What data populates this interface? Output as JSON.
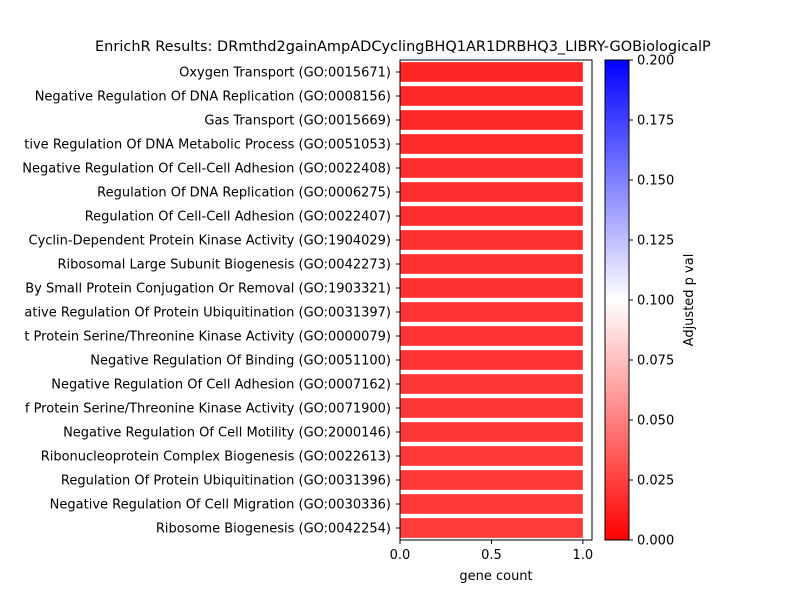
{
  "chart_data": {
    "type": "bar",
    "orientation": "horizontal",
    "title": "EnrichR Results: DRmthd2gainAmpADCyclingBHQ1AR1DRBHQ3_LIBRY-GOBiologicalP",
    "xlabel": "gene count",
    "ylabel": "",
    "xlim": [
      0,
      1.05
    ],
    "xticks": [
      "0.0",
      "0.5",
      "1.0"
    ],
    "categories": [
      "Oxygen Transport (GO:0015671)",
      "Negative Regulation Of DNA Replication (GO:0008156)",
      "Gas Transport (GO:0015669)",
      "tive Regulation Of DNA Metabolic Process (GO:0051053)",
      "Negative Regulation Of Cell-Cell Adhesion (GO:0022408)",
      "Regulation Of DNA Replication (GO:0006275)",
      "Regulation Of Cell-Cell Adhesion (GO:0022407)",
      "Cyclin-Dependent Protein Kinase Activity (GO:1904029)",
      "Ribosomal Large Subunit Biogenesis (GO:0042273)",
      "By Small Protein Conjugation Or Removal (GO:1903321)",
      "ative Regulation Of Protein Ubiquitination (GO:0031397)",
      "t Protein Serine/Threonine Kinase Activity (GO:0000079)",
      "Negative Regulation Of Binding (GO:0051100)",
      "Negative Regulation Of Cell Adhesion (GO:0007162)",
      "f Protein Serine/Threonine Kinase Activity (GO:0071900)",
      "Negative Regulation Of Cell Motility (GO:2000146)",
      "Ribonucleoprotein Complex Biogenesis (GO:0022613)",
      "Regulation Of Protein Ubiquitination (GO:0031396)",
      "Negative Regulation Of Cell Migration (GO:0030336)",
      "Ribosome Biogenesis (GO:0042254)"
    ],
    "values": [
      1,
      1,
      1,
      1,
      1,
      1,
      1,
      1,
      1,
      1,
      1,
      1,
      1,
      1,
      1,
      1,
      1,
      1,
      1,
      1
    ],
    "adjusted_p": [
      0.015,
      0.016,
      0.016,
      0.017,
      0.018,
      0.018,
      0.018,
      0.019,
      0.019,
      0.019,
      0.02,
      0.02,
      0.02,
      0.021,
      0.021,
      0.021,
      0.022,
      0.022,
      0.022,
      0.023
    ],
    "colorbar": {
      "label": "Adjusted p val",
      "range": [
        0,
        0.2
      ],
      "ticks": [
        "0.000",
        "0.025",
        "0.050",
        "0.075",
        "0.100",
        "0.125",
        "0.150",
        "0.175",
        "0.200"
      ],
      "colormap": [
        "#ff0000",
        "#ffffff",
        "#0000ff"
      ]
    },
    "grid": false,
    "legend": "none"
  }
}
